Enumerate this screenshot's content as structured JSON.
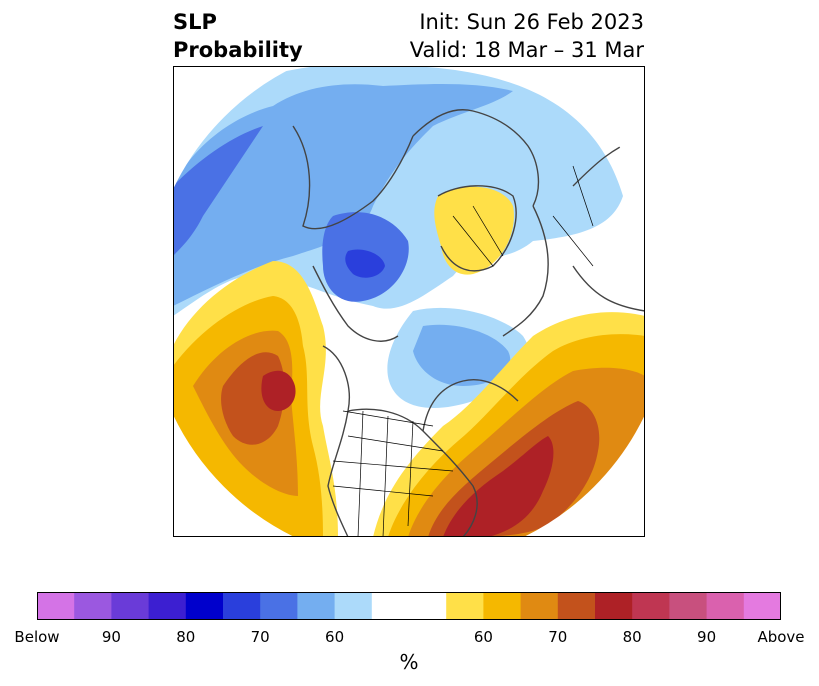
{
  "title": {
    "left_line1": "SLP",
    "left_line2": "Probability",
    "right_line1": "Init: Sun 26 Feb 2023",
    "right_line2": "Valid: 18 Mar – 31 Mar"
  },
  "colorbar": {
    "label": "%",
    "colors": [
      "#d473e6",
      "#9b58e0",
      "#6a3bd8",
      "#3c1fd1",
      "#0000cc",
      "#2a3fdc",
      "#4a71e5",
      "#74aef0",
      "#acdafa",
      "#ffffff",
      "#ffffff",
      "#ffe048",
      "#f5b800",
      "#e08a12",
      "#c3521c",
      "#ae2126",
      "#bf3652",
      "#c8507e",
      "#da61ae",
      "#e47ae0"
    ],
    "ticks": [
      "Below",
      "90",
      "80",
      "70",
      "60",
      "60",
      "70",
      "80",
      "90",
      "Above"
    ]
  },
  "map": {
    "projection": "north-polar-stereographic",
    "field": "SLP probability",
    "colors": {
      "below_60": "#acdafa",
      "below_70": "#74aef0",
      "below_80": "#4a71e5",
      "below_90": "#2a3fdc",
      "above_60": "#ffe048",
      "above_70": "#f5b800",
      "above_80": "#e08a12",
      "above_90": "#c3521c",
      "above_max": "#ae2126",
      "coast": "#444444",
      "border": "#000000"
    }
  }
}
